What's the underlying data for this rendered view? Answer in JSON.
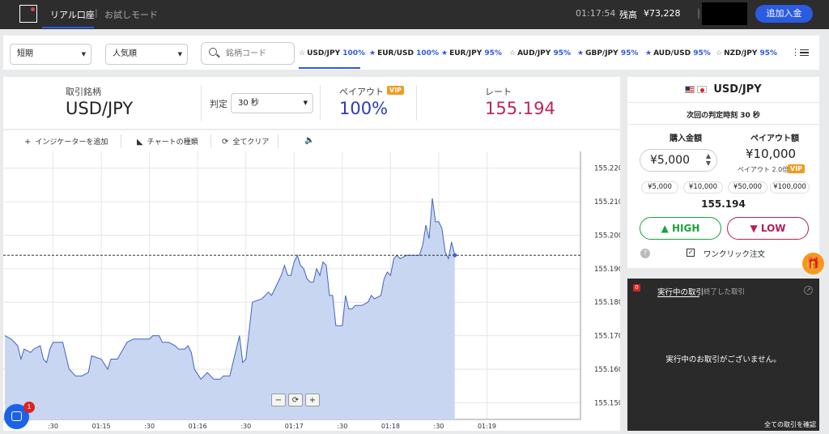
{
  "topbar": {
    "mode_real": "リアル口座",
    "mode_sep": "|",
    "mode_demo": "お試しモード",
    "clock": "01:17:54",
    "balance_label": "残高",
    "balance_value": "¥73,228",
    "balance_sep": "|",
    "deposit_label": "追加入金"
  },
  "filters": {
    "period": "短期",
    "sort": "人気順",
    "search_placeholder": "銘柄コード"
  },
  "pair_tabs": [
    {
      "name": "USD/JPY",
      "pct": "100%",
      "starred": false
    },
    {
      "name": "EUR/USD",
      "pct": "100%",
      "starred": true
    },
    {
      "name": "EUR/JPY",
      "pct": "95%",
      "starred": true
    },
    {
      "name": "AUD/JPY",
      "pct": "95%",
      "starred": false
    },
    {
      "name": "GBP/JPY",
      "pct": "95%",
      "starred": true
    },
    {
      "name": "AUD/USD",
      "pct": "95%",
      "starred": true
    },
    {
      "name": "NZD/JPY",
      "pct": "95%",
      "starred": false
    }
  ],
  "info": {
    "symbol_label": "取引銘柄",
    "symbol_value": "USD/JPY",
    "judge_label": "判定",
    "judge_value": "30 秒",
    "payout_label": "ペイアウト",
    "vip": "VIP",
    "payout_value": "100%",
    "rate_label": "レート",
    "rate_value": "155.194"
  },
  "chart_tools": {
    "indicator": "インジケーターを追加",
    "chart_type": "チャートの種類",
    "clear_all": "全てクリア"
  },
  "chart_data": {
    "type": "area",
    "ylim": [
      155.145,
      155.225
    ],
    "yticks": [
      "155.220",
      "155.210",
      "155.200",
      "155.190",
      "155.180",
      "155.170",
      "155.160",
      "155.150"
    ],
    "xticks": [
      ":30",
      "01:15",
      ":30",
      "01:16",
      ":30",
      "01:17",
      ":30",
      "01:18",
      ":30",
      "01:19"
    ],
    "xtick_seconds": [
      30,
      60,
      90,
      120,
      150,
      180,
      210,
      240,
      270,
      300
    ],
    "current_price": 155.194,
    "series_color": "#3f64c4",
    "fill_color": "#c9d6f2",
    "points": [
      [
        0,
        155.17
      ],
      [
        4,
        155.169
      ],
      [
        8,
        155.167
      ],
      [
        10,
        155.163
      ],
      [
        12,
        155.166
      ],
      [
        16,
        155.165
      ],
      [
        18,
        155.166
      ],
      [
        22,
        155.167
      ],
      [
        24,
        155.163
      ],
      [
        26,
        155.162
      ],
      [
        28,
        155.166
      ],
      [
        30,
        155.168
      ],
      [
        36,
        155.168
      ],
      [
        40,
        155.16
      ],
      [
        44,
        155.158
      ],
      [
        48,
        155.158
      ],
      [
        52,
        155.159
      ],
      [
        54,
        155.164
      ],
      [
        60,
        155.163
      ],
      [
        64,
        155.16
      ],
      [
        66,
        155.163
      ],
      [
        70,
        155.163
      ],
      [
        76,
        155.168
      ],
      [
        80,
        155.169
      ],
      [
        90,
        155.169
      ],
      [
        92,
        155.17
      ],
      [
        96,
        155.17
      ],
      [
        98,
        155.168
      ],
      [
        102,
        155.168
      ],
      [
        106,
        155.167
      ],
      [
        108,
        155.166
      ],
      [
        112,
        155.166
      ],
      [
        114,
        155.167
      ],
      [
        116,
        155.165
      ],
      [
        118,
        155.16
      ],
      [
        122,
        155.157
      ],
      [
        126,
        155.159
      ],
      [
        130,
        155.157
      ],
      [
        134,
        155.157
      ],
      [
        136,
        155.158
      ],
      [
        140,
        155.158
      ],
      [
        144,
        155.166
      ],
      [
        146,
        155.17
      ],
      [
        148,
        155.162
      ],
      [
        150,
        155.163
      ],
      [
        154,
        155.18
      ],
      [
        160,
        155.181
      ],
      [
        164,
        155.183
      ],
      [
        166,
        155.182
      ],
      [
        168,
        155.184
      ],
      [
        172,
        155.188
      ],
      [
        174,
        155.191
      ],
      [
        176,
        155.188
      ],
      [
        178,
        155.188
      ],
      [
        180,
        155.192
      ],
      [
        182,
        155.194
      ],
      [
        184,
        155.191
      ],
      [
        186,
        155.19
      ],
      [
        188,
        155.187
      ],
      [
        190,
        155.186
      ],
      [
        192,
        155.186
      ],
      [
        194,
        155.19
      ],
      [
        196,
        155.188
      ],
      [
        198,
        155.192
      ],
      [
        200,
        155.191
      ],
      [
        202,
        155.182
      ],
      [
        204,
        155.182
      ],
      [
        206,
        155.173
      ],
      [
        210,
        155.173
      ],
      [
        212,
        155.182
      ],
      [
        214,
        155.178
      ],
      [
        216,
        155.178
      ],
      [
        218,
        155.179
      ],
      [
        222,
        155.179
      ],
      [
        226,
        155.18
      ],
      [
        228,
        155.182
      ],
      [
        230,
        155.181
      ],
      [
        234,
        155.182
      ],
      [
        236,
        155.187
      ],
      [
        238,
        155.189
      ],
      [
        240,
        155.188
      ],
      [
        242,
        155.193
      ],
      [
        244,
        155.194
      ],
      [
        246,
        155.193
      ],
      [
        250,
        155.194
      ],
      [
        258,
        155.194
      ],
      [
        260,
        155.197
      ],
      [
        262,
        155.203
      ],
      [
        264,
        155.199
      ],
      [
        266,
        155.211
      ],
      [
        268,
        155.204
      ],
      [
        270,
        155.204
      ],
      [
        272,
        155.202
      ],
      [
        274,
        155.195
      ],
      [
        276,
        155.193
      ],
      [
        278,
        155.198
      ],
      [
        280,
        155.194
      ]
    ]
  },
  "trade": {
    "pair": "USD/JPY",
    "next_judge": "次回の判定時刻 30 秒",
    "amount_label": "購入金額",
    "payout_label": "ペイアウト額",
    "amount_value": "¥5,000",
    "payout_value": "¥10,000",
    "payout_sub": "ペイアウト 2.0倍",
    "vip": "VIP",
    "chips": [
      "¥5,000",
      "¥10,000",
      "¥50,000",
      "¥100,000"
    ],
    "rate": "155.194",
    "high_label": "HIGH",
    "low_label": "LOW",
    "oneclick_label": "ワンクリック注文"
  },
  "trades_panel": {
    "count": "0",
    "tab_active": "実行中の取引",
    "tab_done": "終了した取引",
    "empty_message": "実行中のお取引がございません。",
    "all_link": "全ての取引を確認"
  },
  "chat": {
    "badge": "1"
  }
}
